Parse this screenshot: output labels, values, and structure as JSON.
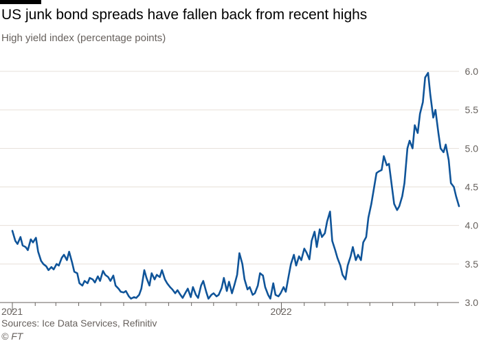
{
  "header": {
    "title": "US junk bond spreads have fallen back from recent highs",
    "subtitle": "High yield index (percentage points)"
  },
  "footer": {
    "source": "Sources: Ice Data Services, Refinitiv",
    "credit": "© FT"
  },
  "colors": {
    "line": "#0f5499",
    "grid": "#e6dfd8",
    "axis": "#66605c",
    "text": "#33302e",
    "topbar": "#000000"
  },
  "chart_data": {
    "type": "line",
    "title": "US junk bond spreads have fallen back from recent highs",
    "subtitle": "High yield index (percentage points)",
    "xlabel": "",
    "ylabel": "",
    "ylim": [
      3.0,
      6.0
    ],
    "yticks": [
      "3.0",
      "3.5",
      "4.0",
      "4.5",
      "5.0",
      "5.5",
      "6.0"
    ],
    "xticks": [
      {
        "label": "2021",
        "x": "2021-01-01"
      },
      {
        "label": "2022",
        "x": "2022-01-01"
      }
    ],
    "grid": true,
    "y_axis_side": "right",
    "x": [
      "2021-01-01",
      "2021-01-05",
      "2021-01-08",
      "2021-01-12",
      "2021-01-15",
      "2021-01-19",
      "2021-01-22",
      "2021-01-26",
      "2021-01-29",
      "2021-02-02",
      "2021-02-05",
      "2021-02-09",
      "2021-02-12",
      "2021-02-16",
      "2021-02-19",
      "2021-02-23",
      "2021-02-26",
      "2021-03-02",
      "2021-03-05",
      "2021-03-09",
      "2021-03-12",
      "2021-03-16",
      "2021-03-19",
      "2021-03-23",
      "2021-03-26",
      "2021-03-30",
      "2021-04-02",
      "2021-04-06",
      "2021-04-09",
      "2021-04-13",
      "2021-04-16",
      "2021-04-20",
      "2021-04-23",
      "2021-04-27",
      "2021-04-30",
      "2021-05-04",
      "2021-05-07",
      "2021-05-11",
      "2021-05-14",
      "2021-05-18",
      "2021-05-21",
      "2021-05-25",
      "2021-05-28",
      "2021-06-01",
      "2021-06-04",
      "2021-06-08",
      "2021-06-11",
      "2021-06-15",
      "2021-06-18",
      "2021-06-22",
      "2021-06-25",
      "2021-06-29",
      "2021-07-02",
      "2021-07-06",
      "2021-07-09",
      "2021-07-13",
      "2021-07-16",
      "2021-07-20",
      "2021-07-23",
      "2021-07-27",
      "2021-07-30",
      "2021-08-03",
      "2021-08-06",
      "2021-08-10",
      "2021-08-13",
      "2021-08-17",
      "2021-08-20",
      "2021-08-24",
      "2021-08-27",
      "2021-08-31",
      "2021-09-03",
      "2021-09-07",
      "2021-09-10",
      "2021-09-14",
      "2021-09-17",
      "2021-09-21",
      "2021-09-24",
      "2021-09-28",
      "2021-10-01",
      "2021-10-05",
      "2021-10-08",
      "2021-10-12",
      "2021-10-15",
      "2021-10-19",
      "2021-10-22",
      "2021-10-26",
      "2021-10-29",
      "2021-11-02",
      "2021-11-05",
      "2021-11-09",
      "2021-11-12",
      "2021-11-16",
      "2021-11-19",
      "2021-11-23",
      "2021-11-26",
      "2021-11-30",
      "2021-12-03",
      "2021-12-07",
      "2021-12-10",
      "2021-12-14",
      "2021-12-17",
      "2021-12-21",
      "2021-12-24",
      "2021-12-28",
      "2021-12-31",
      "2022-01-04",
      "2022-01-07",
      "2022-01-11",
      "2022-01-14",
      "2022-01-18",
      "2022-01-21",
      "2022-01-25",
      "2022-01-28",
      "2022-02-01",
      "2022-02-04",
      "2022-02-08",
      "2022-02-11",
      "2022-02-15",
      "2022-02-18",
      "2022-02-22",
      "2022-02-25",
      "2022-03-01",
      "2022-03-04",
      "2022-03-08",
      "2022-03-11",
      "2022-03-15",
      "2022-03-18",
      "2022-03-22",
      "2022-03-25",
      "2022-03-29",
      "2022-04-01",
      "2022-04-05",
      "2022-04-08",
      "2022-04-12",
      "2022-04-15",
      "2022-04-19",
      "2022-04-22",
      "2022-04-26",
      "2022-04-29",
      "2022-05-03",
      "2022-05-06",
      "2022-05-10",
      "2022-05-13",
      "2022-05-17",
      "2022-05-20",
      "2022-05-24",
      "2022-05-27",
      "2022-05-31",
      "2022-06-03",
      "2022-06-07",
      "2022-06-10",
      "2022-06-14",
      "2022-06-17",
      "2022-06-21",
      "2022-06-24",
      "2022-06-28",
      "2022-07-01",
      "2022-07-05",
      "2022-07-08",
      "2022-07-12",
      "2022-07-15",
      "2022-07-19",
      "2022-07-22",
      "2022-07-26",
      "2022-07-29",
      "2022-08-02",
      "2022-08-05",
      "2022-08-09",
      "2022-08-12",
      "2022-08-16",
      "2022-08-19",
      "2022-08-23",
      "2022-08-26",
      "2022-08-30"
    ],
    "series": [
      {
        "name": "",
        "values": [
          3.93,
          3.8,
          3.76,
          3.85,
          3.74,
          3.72,
          3.68,
          3.82,
          3.78,
          3.84,
          3.66,
          3.54,
          3.5,
          3.47,
          3.42,
          3.46,
          3.43,
          3.5,
          3.48,
          3.58,
          3.62,
          3.55,
          3.66,
          3.52,
          3.4,
          3.38,
          3.25,
          3.22,
          3.28,
          3.25,
          3.32,
          3.3,
          3.26,
          3.34,
          3.28,
          3.41,
          3.36,
          3.33,
          3.28,
          3.35,
          3.22,
          3.18,
          3.14,
          3.13,
          3.15,
          3.08,
          3.05,
          3.07,
          3.06,
          3.1,
          3.18,
          3.42,
          3.32,
          3.22,
          3.38,
          3.3,
          3.36,
          3.33,
          3.42,
          3.3,
          3.25,
          3.2,
          3.17,
          3.12,
          3.16,
          3.1,
          3.06,
          3.13,
          3.18,
          3.07,
          3.2,
          3.1,
          3.06,
          3.22,
          3.28,
          3.14,
          3.05,
          3.1,
          3.12,
          3.08,
          3.1,
          3.19,
          3.32,
          3.15,
          3.27,
          3.12,
          3.22,
          3.36,
          3.64,
          3.5,
          3.3,
          3.17,
          3.2,
          3.1,
          3.12,
          3.22,
          3.38,
          3.35,
          3.2,
          3.1,
          3.05,
          3.25,
          3.1,
          3.08,
          3.12,
          3.2,
          3.14,
          3.35,
          3.5,
          3.62,
          3.48,
          3.6,
          3.55,
          3.7,
          3.65,
          3.56,
          3.8,
          3.92,
          3.72,
          3.95,
          3.85,
          3.9,
          4.05,
          4.18,
          3.8,
          3.68,
          3.58,
          3.48,
          3.36,
          3.3,
          3.48,
          3.6,
          3.72,
          3.55,
          3.62,
          3.55,
          3.78,
          3.85,
          4.1,
          4.28,
          4.45,
          4.68,
          4.7,
          4.72,
          4.9,
          4.78,
          4.8,
          4.5,
          4.28,
          4.2,
          4.25,
          4.38,
          4.55,
          5.0,
          5.1,
          5.0,
          5.3,
          5.2,
          5.45,
          5.6,
          5.92,
          5.98,
          5.7,
          5.4,
          5.5,
          5.2,
          5.0,
          4.95,
          5.05,
          4.85,
          4.55,
          4.5,
          4.38,
          4.25
        ]
      }
    ]
  }
}
